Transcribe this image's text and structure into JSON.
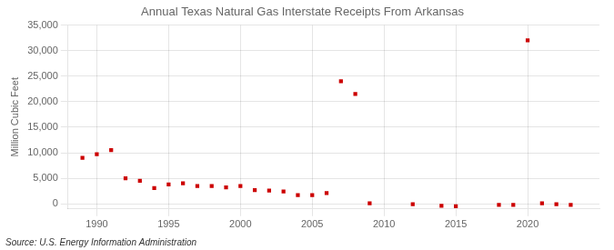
{
  "chart_data": {
    "type": "scatter",
    "title": "Annual Texas Natural Gas Interstate Receipts From Arkansas",
    "ylabel": "Million Cubic Feet",
    "annotations": [
      "Source: U.S. Energy Information Administration"
    ],
    "x": [
      1989,
      1990,
      1991,
      1992,
      1993,
      1994,
      1995,
      1996,
      1997,
      1998,
      1999,
      2000,
      2001,
      2002,
      2003,
      2004,
      2005,
      2006,
      2007,
      2008,
      2009,
      2012,
      2014,
      2015,
      2018,
      2019,
      2020,
      2021,
      2022,
      2023
    ],
    "values": [
      9000,
      9700,
      10500,
      5000,
      4500,
      3100,
      3800,
      4000,
      3500,
      3500,
      3200,
      3500,
      2700,
      2600,
      2400,
      1700,
      1700,
      2100,
      24000,
      21500,
      100,
      -100,
      -400,
      -500,
      -200,
      -200,
      32000,
      100,
      -100,
      -200
    ],
    "color": "#cc0000",
    "marker": "square",
    "xlim": [
      1988,
      2025
    ],
    "xticks": [
      1990,
      1995,
      2000,
      2005,
      2010,
      2015,
      2020
    ],
    "ylim": [
      -1000,
      35000
    ],
    "yticks": [
      0,
      {
        "value": 5000,
        "label": "5,000"
      },
      {
        "value": 10000,
        "label": "10,000"
      },
      {
        "value": 15000,
        "label": "15,000"
      },
      {
        "value": 20000,
        "label": "20,000"
      },
      {
        "value": 25000,
        "label": "25,000"
      },
      {
        "value": 30000,
        "label": "30,000"
      },
      {
        "value": 35000,
        "label": "35,000"
      }
    ],
    "grid": true
  }
}
